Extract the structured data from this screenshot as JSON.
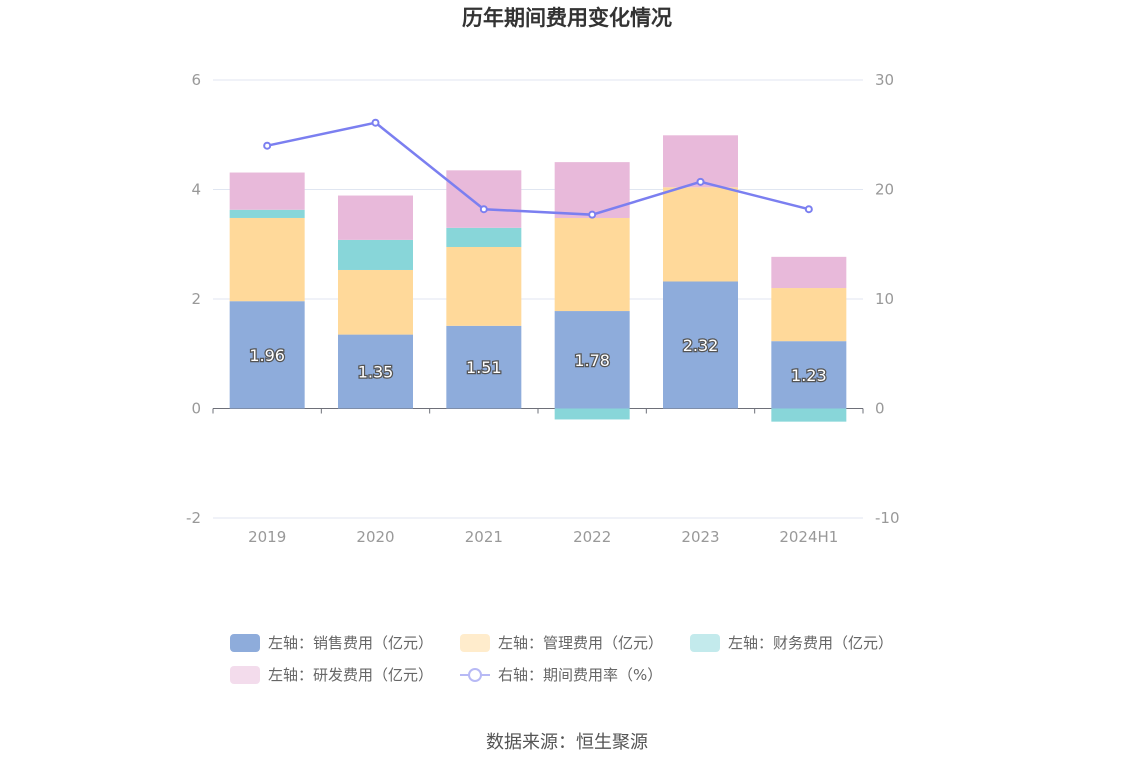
{
  "chart_data": {
    "type": "bar",
    "title": "历年期间费用变化情况",
    "categories": [
      "2019",
      "2020",
      "2021",
      "2022",
      "2023",
      "2024H1"
    ],
    "left_axis": {
      "ylim": [
        -2,
        6
      ],
      "ticks": [
        "-2",
        "0",
        "2",
        "4",
        "6"
      ]
    },
    "right_axis": {
      "ylim": [
        -10,
        30
      ],
      "ticks": [
        "-10",
        "0",
        "10",
        "20",
        "30"
      ]
    },
    "series": [
      {
        "name": "左轴：销售费用（亿元）",
        "axis": "left",
        "kind": "stacked-bar",
        "color": "#8eacdb",
        "values": [
          1.96,
          1.35,
          1.51,
          1.78,
          2.32,
          1.23
        ],
        "show_labels": true
      },
      {
        "name": "左轴：管理费用（亿元）",
        "axis": "left",
        "kind": "stacked-bar",
        "color": "#ffd99a",
        "values": [
          1.52,
          1.18,
          1.44,
          1.7,
          1.72,
          0.97
        ]
      },
      {
        "name": "左轴：财务费用（亿元）",
        "axis": "left",
        "kind": "stacked-bar",
        "color": "#88d6d9",
        "values": [
          0.15,
          0.55,
          0.35,
          -0.2,
          0.0,
          -0.24
        ]
      },
      {
        "name": "左轴：研发费用（亿元）",
        "axis": "left",
        "kind": "stacked-bar",
        "color": "#e8b9da",
        "values": [
          0.68,
          0.81,
          1.05,
          1.02,
          0.95,
          0.57
        ]
      },
      {
        "name": "右轴：期间费用率（%）",
        "axis": "right",
        "kind": "line",
        "color": "#7b7ff0",
        "values": [
          24.0,
          26.1,
          18.2,
          17.7,
          20.7,
          18.2
        ]
      }
    ],
    "legend_position": "bottom",
    "grid": true
  },
  "source": "数据来源：恒生聚源"
}
